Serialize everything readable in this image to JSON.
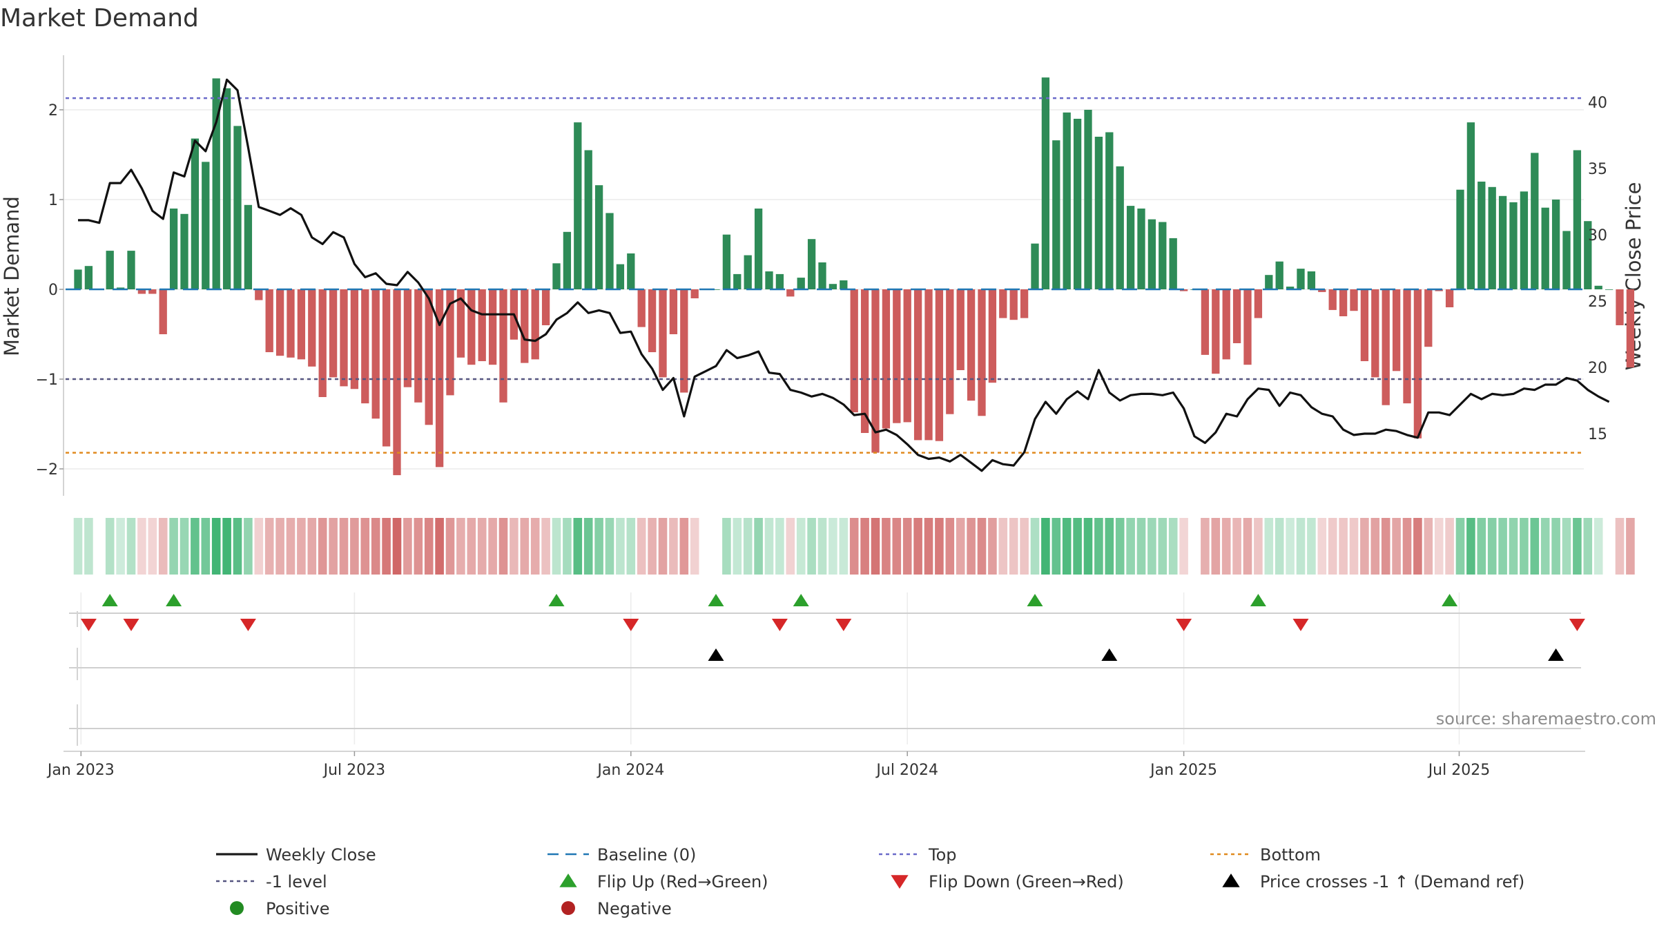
{
  "chart_data": {
    "type": "bar",
    "title": "Market Demand",
    "ylabel": "Market Demand",
    "y2label": "Weekly Close Price",
    "ylim": [
      -2.35,
      2.55
    ],
    "y2lim": [
      11.5,
      42.0
    ],
    "yticks": [
      "−2",
      "−1",
      "0",
      "1",
      "2"
    ],
    "y2ticks": [
      15,
      20,
      25,
      30,
      35,
      40
    ],
    "start_date": "2022-12-30",
    "xticks": [
      {
        "label": "Jan 2023",
        "week": 0.28
      },
      {
        "label": "Jul 2023",
        "week": 26.0
      },
      {
        "label": "Jan 2024",
        "week": 52.0
      },
      {
        "label": "Jul 2024",
        "week": 78.0
      },
      {
        "label": "Jan 2025",
        "week": 104.0
      },
      {
        "label": "Jul 2025",
        "week": 129.9
      }
    ],
    "reference_lines": {
      "top": 2.13,
      "minus_one": -1.0,
      "bottom": -1.82,
      "baseline": 0
    },
    "series": [
      {
        "name": "Market Demand",
        "values": [
          0.22,
          0.26,
          0.0,
          0.43,
          0.02,
          0.43,
          -0.05,
          -0.05,
          -0.5,
          0.9,
          0.84,
          1.68,
          1.42,
          2.35,
          2.24,
          1.82,
          0.94,
          -0.12,
          -0.7,
          -0.74,
          -0.76,
          -0.78,
          -0.86,
          -1.2,
          -0.98,
          -1.08,
          -1.11,
          -1.27,
          -1.44,
          -1.75,
          -2.07,
          -1.09,
          -1.26,
          -1.51,
          -1.98,
          -1.18,
          -0.76,
          -0.84,
          -0.8,
          -0.84,
          -1.26,
          -0.56,
          -0.82,
          -0.78,
          -0.4,
          0.29,
          0.64,
          1.86,
          1.55,
          1.16,
          0.85,
          0.28,
          0.4,
          -0.42,
          -0.7,
          -0.98,
          -0.5,
          -1.15,
          -0.1,
          0.0,
          0.0,
          0.61,
          0.17,
          0.38,
          0.9,
          0.2,
          0.17,
          -0.08,
          0.13,
          0.56,
          0.3,
          0.06,
          0.1,
          -1.37,
          -1.6,
          -1.82,
          -1.55,
          -1.49,
          -1.48,
          -1.68,
          -1.68,
          -1.69,
          -1.39,
          -0.9,
          -1.24,
          -1.41,
          -1.04,
          -0.32,
          -0.34,
          -0.32,
          0.51,
          2.36,
          1.66,
          1.97,
          1.9,
          2.0,
          1.7,
          1.75,
          1.37,
          0.93,
          0.9,
          0.78,
          0.75,
          0.57,
          -0.02,
          0.0,
          -0.73,
          -0.94,
          -0.78,
          -0.6,
          -0.84,
          -0.32,
          0.16,
          0.31,
          0.03,
          0.23,
          0.2,
          -0.03,
          -0.23,
          -0.3,
          -0.24,
          -0.8,
          -0.98,
          -1.29,
          -0.91,
          -1.27,
          -1.66,
          -0.64,
          -0.02,
          -0.2,
          1.11,
          1.86,
          1.2,
          1.14,
          1.04,
          0.97,
          1.09,
          1.52,
          0.91,
          1.0,
          0.65,
          1.55,
          0.76,
          0.04,
          0.0,
          -0.4,
          -0.87
        ]
      },
      {
        "name": "Weekly Close",
        "values": [
          31.1,
          31.1,
          30.9,
          33.9,
          33.9,
          34.9,
          33.5,
          31.8,
          31.2,
          34.7,
          34.4,
          37.1,
          36.3,
          38.5,
          41.7,
          40.9,
          36.6,
          32.1,
          31.8,
          31.5,
          32.0,
          31.5,
          29.8,
          29.3,
          30.2,
          29.8,
          27.8,
          26.8,
          27.1,
          26.3,
          26.2,
          27.2,
          26.4,
          25.2,
          23.2,
          24.8,
          25.2,
          24.3,
          24.0,
          24.0,
          24.0,
          24.0,
          22.1,
          22.0,
          22.5,
          23.6,
          24.1,
          24.9,
          24.1,
          24.3,
          24.1,
          22.6,
          22.7,
          21.0,
          19.9,
          18.3,
          19.2,
          16.3,
          19.3,
          19.7,
          20.1,
          21.3,
          20.7,
          20.9,
          21.2,
          19.6,
          19.5,
          18.3,
          18.1,
          17.8,
          18.0,
          17.7,
          17.2,
          16.4,
          16.5,
          15.1,
          15.3,
          14.9,
          14.2,
          13.4,
          13.1,
          13.2,
          12.9,
          13.4,
          12.8,
          12.2,
          13.0,
          12.7,
          12.6,
          13.6,
          16.1,
          17.4,
          16.5,
          17.6,
          18.2,
          17.6,
          19.8,
          18.1,
          17.5,
          17.9,
          18.0,
          18.0,
          17.9,
          18.1,
          16.9,
          14.8,
          14.3,
          15.1,
          16.5,
          16.3,
          17.6,
          18.4,
          18.3,
          17.1,
          18.1,
          17.9,
          17.0,
          16.5,
          16.3,
          15.3,
          14.9,
          15.0,
          15.0,
          15.3,
          15.2,
          14.9,
          14.7,
          16.6,
          16.6,
          16.4,
          17.2,
          18.0,
          17.6,
          18.0,
          17.9,
          18.0,
          18.4,
          18.3,
          18.7,
          18.7,
          19.2,
          19.0,
          18.3,
          17.8,
          17.4
        ]
      }
    ],
    "flip_up_weeks": [
      3,
      9,
      45,
      60,
      68,
      90,
      111,
      129
    ],
    "flip_down_weeks": [
      1,
      5,
      16,
      52,
      66,
      72,
      104,
      115,
      141
    ],
    "price_cross_weeks": [
      60,
      97,
      139
    ],
    "legend": [
      {
        "label": "Weekly Close",
        "marker": "solid-line",
        "color": "#1a1a1a"
      },
      {
        "label": "Baseline (0)",
        "marker": "dashed-line",
        "color": "#1f77b4"
      },
      {
        "label": "Top",
        "marker": "dotted-line",
        "color": "#6a6ac9"
      },
      {
        "label": "Bottom",
        "marker": "dotted-line",
        "color": "#e08a1e"
      },
      {
        "label": "-1 level",
        "marker": "dotted-line",
        "color": "#555580"
      },
      {
        "label": "Flip Up (Red→Green)",
        "marker": "triangle-up",
        "color": "#2ca02c"
      },
      {
        "label": "Flip Down (Green→Red)",
        "marker": "triangle-down",
        "color": "#d62728"
      },
      {
        "label": "Price crosses -1 ↑ (Demand ref)",
        "marker": "triangle-up",
        "color": "#000000"
      },
      {
        "label": "Positive",
        "marker": "circle",
        "color": "#228b22"
      },
      {
        "label": "Negative",
        "marker": "circle",
        "color": "#b22222"
      }
    ],
    "source": "source: sharemaestro.com",
    "colors": {
      "positive_bar": "#2e8b57",
      "negative_bar": "#cd5c5c",
      "price_line": "#111111",
      "baseline": "#1f77b4",
      "top_line": "#6a6ac9",
      "minus_one_line": "#555580",
      "bottom_line": "#e08a1e",
      "flip_up": "#2ca02c",
      "flip_down": "#d62728",
      "cross": "#000000",
      "positive_strip": "#3cb371",
      "negative_strip": "#cd5c5c"
    }
  }
}
